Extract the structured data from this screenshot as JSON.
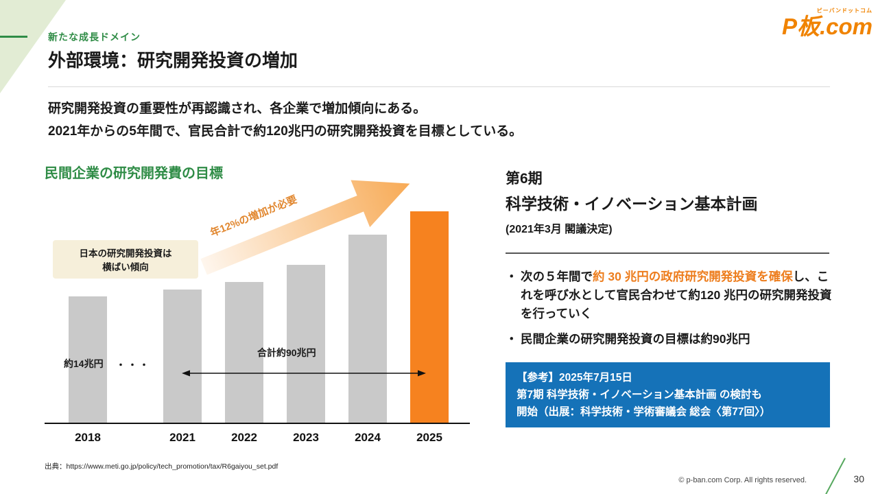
{
  "slide": {
    "tag": "新たな成長ドメイン",
    "title": "外部環境：研究開発投資の増加",
    "lead": {
      "line1": "研究開発投資の重要性が再認識され、各企業で増加傾向にある。",
      "line2": "2021年からの5年間で、官民合計で約120兆円の研究開発投資を目標としている。"
    },
    "source": "出典：https://www.meti.go.jp/policy/tech_promotion/tax/R6gaiyou_set.pdf",
    "copyright": "©  p-ban.com Corp. All rights reserved.",
    "page_number": "30"
  },
  "logo": {
    "caption": "ピーバンドットコム",
    "brand": "P板.com"
  },
  "chart_section": {
    "heading": "民間企業の研究開発費の目標",
    "flat_note_line1": "日本の研究開発投資は",
    "flat_note_line2": "横ばい傾向",
    "label_2018": "約14兆円",
    "dots": "・・・",
    "range_label": "合計約90兆円",
    "growth_label": "年12%の増加が必要"
  },
  "chart_data": {
    "type": "bar",
    "title": "民間企業の研究開発費の目標",
    "categories": [
      "2018",
      "2021",
      "2022",
      "2023",
      "2024",
      "2025"
    ],
    "values": [
      14,
      14.8,
      15.6,
      17.5,
      20.9,
      23.5
    ],
    "unit": "兆円",
    "ylim": [
      0,
      25
    ],
    "bar_color": "#c9c9c9",
    "highlight_color": "#f6821f",
    "highlight_index": 5,
    "grid": false,
    "annotations": [
      "約14兆円 (2018年実績)",
      "合計約90兆円 (2021〜2025年)",
      "年12%の増加が必要"
    ]
  },
  "right_panel": {
    "heading_line1": "第6期",
    "heading_line2": "科学技術・イノベーション基本計画",
    "subheading": "(2021年3月 閣議決定)",
    "bullet_marker": "・",
    "bullet1_pre": "次の５年間で",
    "bullet1_highlight": "約 30 兆円の政府研究開発投資を確保",
    "bullet1_post": "し、これを呼び水として官民合わせて約120 兆円の研究開発投資を行っていく",
    "bullet2": "民間企業の研究開発投資の目標は約90兆円",
    "ref_box": {
      "line1": "【参考】2025年7月15日",
      "line2": "第7期 科学技術・イノベーション基本計画 の検討も",
      "line3": "開始（出展：科学技術・学術審議会 総会〈第77回〉）"
    }
  },
  "colors": {
    "accent_green": "#2f8c46",
    "accent_orange": "#ed7d1d",
    "ref_box_blue": "#1572b8",
    "logo_orange": "#f08300"
  }
}
